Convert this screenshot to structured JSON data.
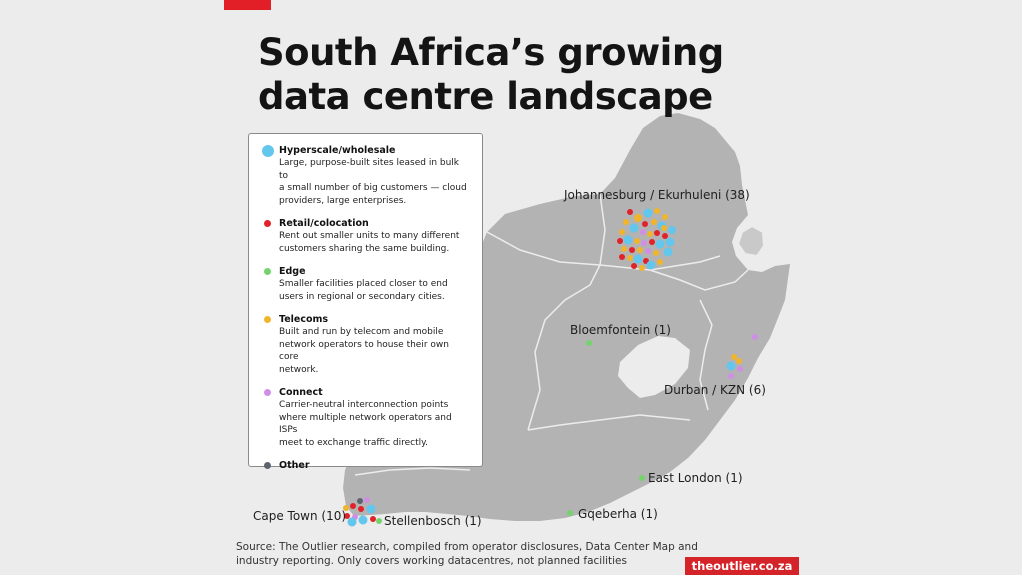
{
  "title": {
    "line1": "South Africa’s growing",
    "line2": "data centre landscape"
  },
  "legend": [
    {
      "name": "Hyperscale/wholesale",
      "color": "#63c6ec",
      "big": true,
      "lines": [
        "Large, purpose-built sites leased in bulk to",
        "a small number of big customers — cloud",
        "providers, large enterprises."
      ]
    },
    {
      "name": "Retail/colocation",
      "color": "#e0232b",
      "big": false,
      "lines": [
        "Rent out smaller units to many different",
        "customers sharing the same building."
      ]
    },
    {
      "name": "Edge",
      "color": "#74d46b",
      "big": false,
      "lines": [
        "Smaller facilities placed closer to end",
        "users in regional or secondary cities."
      ]
    },
    {
      "name": "Telecoms",
      "color": "#f0b52b",
      "big": false,
      "lines": [
        "Built and run by telecom and mobile",
        "network operators to house their own core",
        "network."
      ]
    },
    {
      "name": "Connect",
      "color": "#d08ee6",
      "big": false,
      "lines": [
        "Carrier-neutral interconnection points",
        "where multiple network operators and ISPs",
        "meet to exchange traffic directly."
      ]
    },
    {
      "name": "Other",
      "color": "#5d6470",
      "big": false,
      "lines": []
    }
  ],
  "cities": {
    "johannesburg": "Johannesburg / Ekurhuleni (38)",
    "bloemfontein": "Bloemfontein (1)",
    "durban": "Durban / KZN (6)",
    "east_london": "East London (1)",
    "gqeberha": "Gqeberha (1)",
    "cape_town": "Cape Town (10)",
    "stellenbosch": "Stellenbosch (1)"
  },
  "source": "Source: The Outlier research, compiled from operator disclosures, Data Center Map and industry reporting. Only covers working datacentres, not planned facilities",
  "brand": "theoutlier.co.za"
}
